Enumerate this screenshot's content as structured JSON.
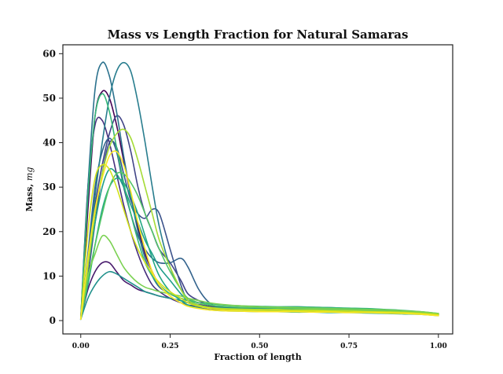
{
  "chart_data": {
    "type": "line",
    "title": "Mass vs Length Fraction for Natural Samaras",
    "xlabel": "Fraction of length",
    "ylabel": "Mass, mg",
    "xlim": [
      -0.05,
      1.04
    ],
    "ylim": [
      -3,
      62
    ],
    "xticks": [
      0.0,
      0.25,
      0.5,
      0.75,
      1.0
    ],
    "xtick_labels": [
      "0.00",
      "0.25",
      "0.50",
      "0.75",
      "1.00"
    ],
    "yticks": [
      0,
      10,
      20,
      30,
      40,
      50,
      60
    ],
    "ytick_labels": [
      "0",
      "10",
      "20",
      "30",
      "40",
      "50",
      "60"
    ],
    "grid": false,
    "legend": "none",
    "colormap": "viridis",
    "x": [
      0.0,
      0.02,
      0.04,
      0.06,
      0.08,
      0.1,
      0.12,
      0.14,
      0.16,
      0.18,
      0.2,
      0.22,
      0.25,
      0.28,
      0.3,
      0.33,
      0.36,
      0.4,
      0.45,
      0.5,
      0.55,
      0.6,
      0.65,
      0.7,
      0.75,
      0.8,
      0.85,
      0.9,
      0.95,
      1.0
    ],
    "series": [
      {
        "color": "#440154",
        "values": [
          0.3,
          25,
          46,
          51.5,
          50,
          44,
          36,
          28,
          21,
          15,
          11,
          8,
          6,
          5,
          4.5,
          4,
          3.5,
          3,
          2.8,
          2.6,
          2.5,
          2.4,
          2.3,
          2.2,
          2.1,
          2,
          1.9,
          1.8,
          1.6,
          1.3
        ]
      },
      {
        "color": "#481a6c",
        "values": [
          0.3,
          7,
          11,
          13,
          13,
          11,
          9,
          8,
          7,
          6.5,
          6,
          5.5,
          5,
          4.5,
          4,
          3.6,
          3.2,
          3,
          2.8,
          2.7,
          2.6,
          2.6,
          2.5,
          2.4,
          2.3,
          2.2,
          2.1,
          2,
          1.8,
          1.4
        ]
      },
      {
        "color": "#472f7d",
        "values": [
          0.3,
          30,
          44,
          45,
          40,
          33,
          26,
          20,
          15,
          11,
          8,
          6.5,
          5,
          4,
          3.5,
          3.2,
          3,
          2.8,
          2.6,
          2.5,
          2.4,
          2.4,
          2.3,
          2.2,
          2.1,
          2,
          1.9,
          1.8,
          1.6,
          1.3
        ]
      },
      {
        "color": "#414487",
        "values": [
          0.3,
          14,
          26,
          35,
          42,
          46,
          44,
          38,
          30,
          24,
          20,
          16,
          13,
          9,
          6,
          4.5,
          3.5,
          3,
          2.8,
          2.7,
          2.6,
          2.5,
          2.4,
          2.3,
          2.2,
          2.1,
          2,
          1.9,
          1.7,
          1.4
        ]
      },
      {
        "color": "#3b528b",
        "values": [
          0.3,
          10,
          22,
          33,
          40,
          39,
          33,
          27,
          24,
          23,
          25,
          24,
          16,
          8,
          4.5,
          3,
          2.5,
          2.5,
          2.6,
          2.7,
          2.8,
          2.8,
          2.7,
          2.6,
          2.5,
          2.4,
          2.3,
          2.1,
          1.9,
          1.5
        ]
      },
      {
        "color": "#33638d",
        "values": [
          0.3,
          15,
          30,
          38,
          41,
          38,
          30,
          24,
          19,
          16,
          14,
          13,
          13,
          14,
          12,
          7,
          4,
          2.5,
          2.6,
          2.8,
          3,
          3.1,
          3,
          2.9,
          2.7,
          2.5,
          2.3,
          2.1,
          1.8,
          1.5
        ]
      },
      {
        "color": "#2c728e",
        "values": [
          0.3,
          30,
          52,
          58,
          55,
          47,
          37,
          28,
          20,
          14,
          10,
          7.5,
          6,
          5,
          4.5,
          4,
          3.5,
          3,
          2.8,
          2.7,
          2.6,
          2.5,
          2.4,
          2.3,
          2.2,
          2.1,
          2,
          1.9,
          1.7,
          1.4
        ]
      },
      {
        "color": "#287d8e",
        "values": [
          0.3,
          14,
          28,
          40,
          50,
          56,
          58,
          56,
          49,
          40,
          30,
          21,
          12,
          7,
          5,
          4,
          3.5,
          3,
          2.8,
          2.6,
          2.5,
          2.4,
          2.3,
          2.2,
          2.1,
          2,
          1.9,
          1.8,
          1.6,
          1.3
        ]
      },
      {
        "color": "#21918c",
        "values": [
          0.3,
          5,
          8,
          10,
          11,
          10.5,
          9.5,
          8.5,
          7.5,
          6.5,
          6,
          5.5,
          5,
          4.5,
          4,
          3.5,
          3,
          2.8,
          2.7,
          2.7,
          2.8,
          2.9,
          2.9,
          2.8,
          2.6,
          2.4,
          2.2,
          2,
          1.8,
          1.5
        ]
      },
      {
        "color": "#1f9e89",
        "values": [
          0.3,
          12,
          22,
          30,
          34,
          33,
          30,
          26,
          22,
          18,
          15,
          12,
          9,
          6,
          4.5,
          3.5,
          3,
          2.6,
          2.4,
          2.3,
          2.2,
          2.2,
          2.1,
          2,
          2,
          1.9,
          1.8,
          1.7,
          1.5,
          1.2
        ]
      },
      {
        "color": "#22a884",
        "values": [
          0.3,
          8,
          17,
          25,
          30,
          32,
          31,
          28,
          24,
          19,
          14,
          10,
          6.5,
          4.5,
          3.5,
          2.8,
          2.4,
          2.2,
          2.1,
          2,
          2,
          1.9,
          1.9,
          1.8,
          1.8,
          1.7,
          1.6,
          1.5,
          1.4,
          1.1
        ]
      },
      {
        "color": "#35b779",
        "values": [
          0.3,
          28,
          46,
          51,
          47,
          39,
          31,
          24,
          18,
          13,
          10,
          8,
          6,
          5,
          4.5,
          4,
          3.8,
          3.5,
          3.3,
          3.2,
          3.1,
          3.1,
          3,
          2.9,
          2.8,
          2.7,
          2.5,
          2.3,
          2,
          1.6
        ]
      },
      {
        "color": "#54c568",
        "values": [
          0.3,
          9,
          17,
          24,
          30,
          33,
          33,
          31,
          28,
          24,
          20,
          16,
          11,
          7,
          5,
          4,
          3.5,
          3.2,
          3,
          2.9,
          2.8,
          2.7,
          2.6,
          2.5,
          2.4,
          2.3,
          2.2,
          2,
          1.8,
          1.4
        ]
      },
      {
        "color": "#7ad151",
        "values": [
          0.3,
          10,
          15,
          19,
          18,
          15,
          12,
          10,
          8.5,
          7.5,
          7,
          6.5,
          6,
          5.5,
          5,
          4.5,
          4,
          3.6,
          3.3,
          3.1,
          3,
          2.9,
          2.8,
          2.7,
          2.6,
          2.5,
          2.4,
          2.2,
          2,
          1.6
        ]
      },
      {
        "color": "#a5db36",
        "values": [
          0.3,
          12,
          24,
          33,
          39,
          42,
          43,
          41,
          36,
          30,
          24,
          18,
          12,
          7,
          4.5,
          3.5,
          3,
          2.7,
          2.6,
          2.5,
          2.5,
          2.4,
          2.4,
          2.3,
          2.2,
          2.1,
          2,
          1.9,
          1.7,
          1.4
        ]
      },
      {
        "color": "#d2e21b",
        "values": [
          0.3,
          20,
          32,
          35,
          34,
          30,
          25,
          20,
          16,
          13,
          10.5,
          8.5,
          6.5,
          5,
          4,
          3.2,
          2.8,
          2.5,
          2.4,
          2.3,
          2.3,
          2.2,
          2.2,
          2.1,
          2.1,
          2,
          1.9,
          1.8,
          1.6,
          1.3
        ]
      },
      {
        "color": "#fde725",
        "values": [
          0.3,
          14,
          25,
          32,
          37,
          38,
          35,
          29,
          22,
          16,
          11,
          8,
          5.5,
          4,
          3.2,
          2.7,
          2.4,
          2.2,
          2.1,
          2,
          2,
          2,
          1.9,
          1.9,
          1.8,
          1.8,
          1.7,
          1.6,
          1.4,
          1.1
        ]
      }
    ]
  }
}
